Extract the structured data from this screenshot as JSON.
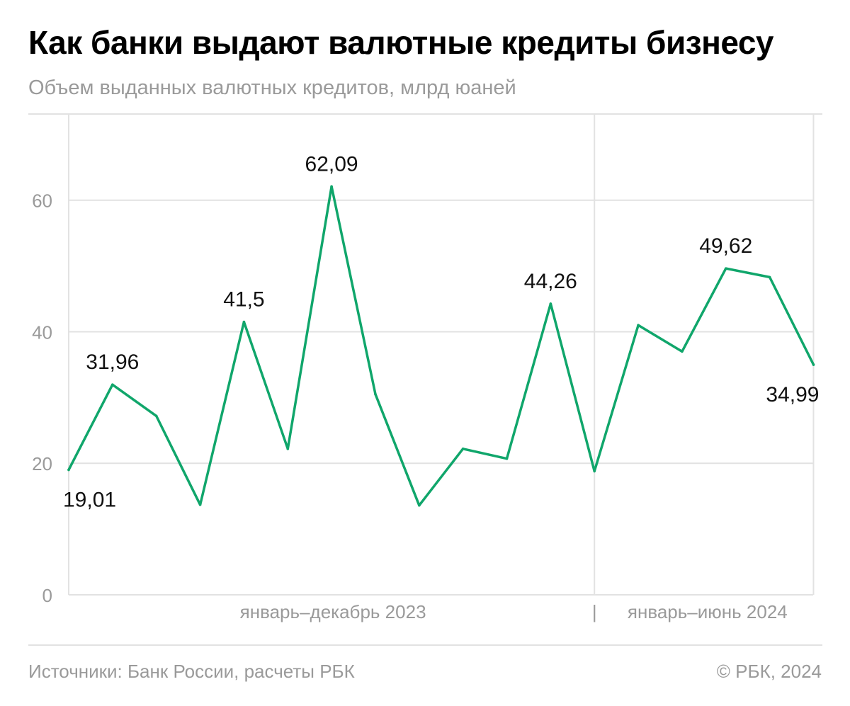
{
  "chart_data": {
    "type": "line",
    "title": "Как банки выдают валютные кредиты бизнесу",
    "subtitle": "Объем выданных валютных кредитов, млрд юаней",
    "xlabel": "",
    "ylabel": "",
    "ylim": [
      0,
      73
    ],
    "yticks": [
      0,
      20,
      40,
      60
    ],
    "grid": true,
    "periods": [
      {
        "label": "январь–декабрь 2023",
        "months": 12
      },
      {
        "label": "январь–июнь 2024",
        "months": 6
      }
    ],
    "period_separator": "|",
    "series": [
      {
        "name": "Объем выданных валютных кредитов, млрд юаней",
        "color": "#10a66b",
        "values": [
          19.01,
          31.96,
          27.2,
          13.7,
          41.5,
          22.2,
          62.09,
          30.5,
          13.6,
          22.2,
          20.7,
          44.26,
          18.8,
          41.0,
          37.0,
          49.62,
          48.3,
          34.99
        ]
      }
    ],
    "data_labels": [
      {
        "index": 0,
        "text": "19,01",
        "position": "below"
      },
      {
        "index": 1,
        "text": "31,96",
        "position": "above"
      },
      {
        "index": 4,
        "text": "41,5",
        "position": "above"
      },
      {
        "index": 6,
        "text": "62,09",
        "position": "above"
      },
      {
        "index": 11,
        "text": "44,26",
        "position": "above"
      },
      {
        "index": 15,
        "text": "49,62",
        "position": "above"
      },
      {
        "index": 17,
        "text": "34,99",
        "position": "below"
      }
    ]
  },
  "footer": {
    "source": "Источники: Банк России, расчеты РБК",
    "copyright": "© РБК, 2024"
  },
  "colors": {
    "line": "#10a66b",
    "grid": "#e2e2e2",
    "muted_text": "#9a9a9a"
  }
}
